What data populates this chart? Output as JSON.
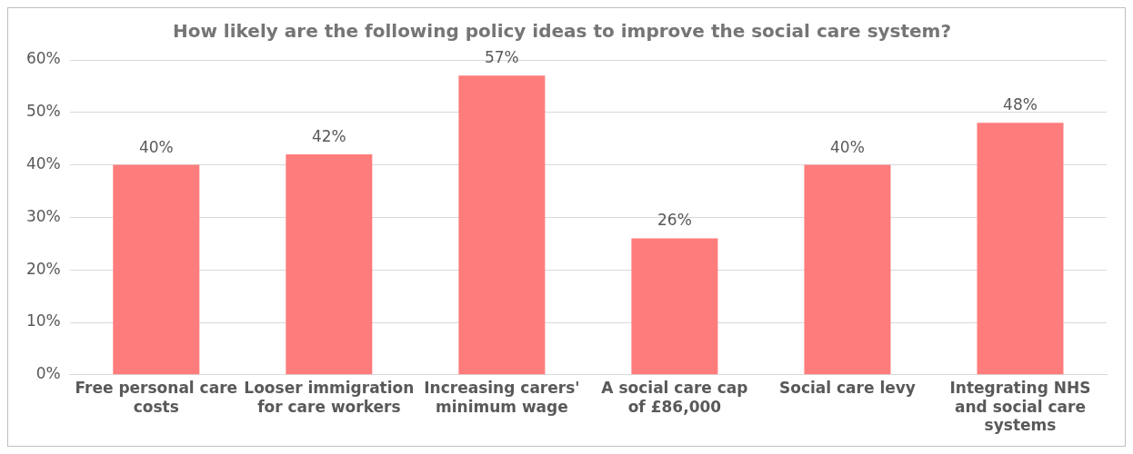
{
  "chart_data": {
    "type": "bar",
    "title": "How likely are the following policy ideas to improve the social care system?",
    "categories": [
      "Free personal care costs",
      "Looser immigration for care workers",
      "Increasing carers' minimum wage",
      "A social care cap of £86,000",
      "Social care levy",
      "Integrating NHS and social care systems"
    ],
    "values": [
      40,
      42,
      57,
      26,
      40,
      48
    ],
    "color": "#ff7c7c",
    "ylim": [
      0,
      60
    ],
    "yticks": [
      {
        "value": 0,
        "label": "0%"
      },
      {
        "value": 10,
        "label": "10%"
      },
      {
        "value": 20,
        "label": "20%"
      },
      {
        "value": 30,
        "label": "30%"
      },
      {
        "value": 40,
        "label": "40%"
      },
      {
        "value": 50,
        "label": "50%"
      },
      {
        "value": 60,
        "label": "60%"
      }
    ],
    "value_labels": [
      "40%",
      "42%",
      "57%",
      "26%",
      "40%",
      "48%"
    ],
    "grid": "y",
    "legend": false
  }
}
